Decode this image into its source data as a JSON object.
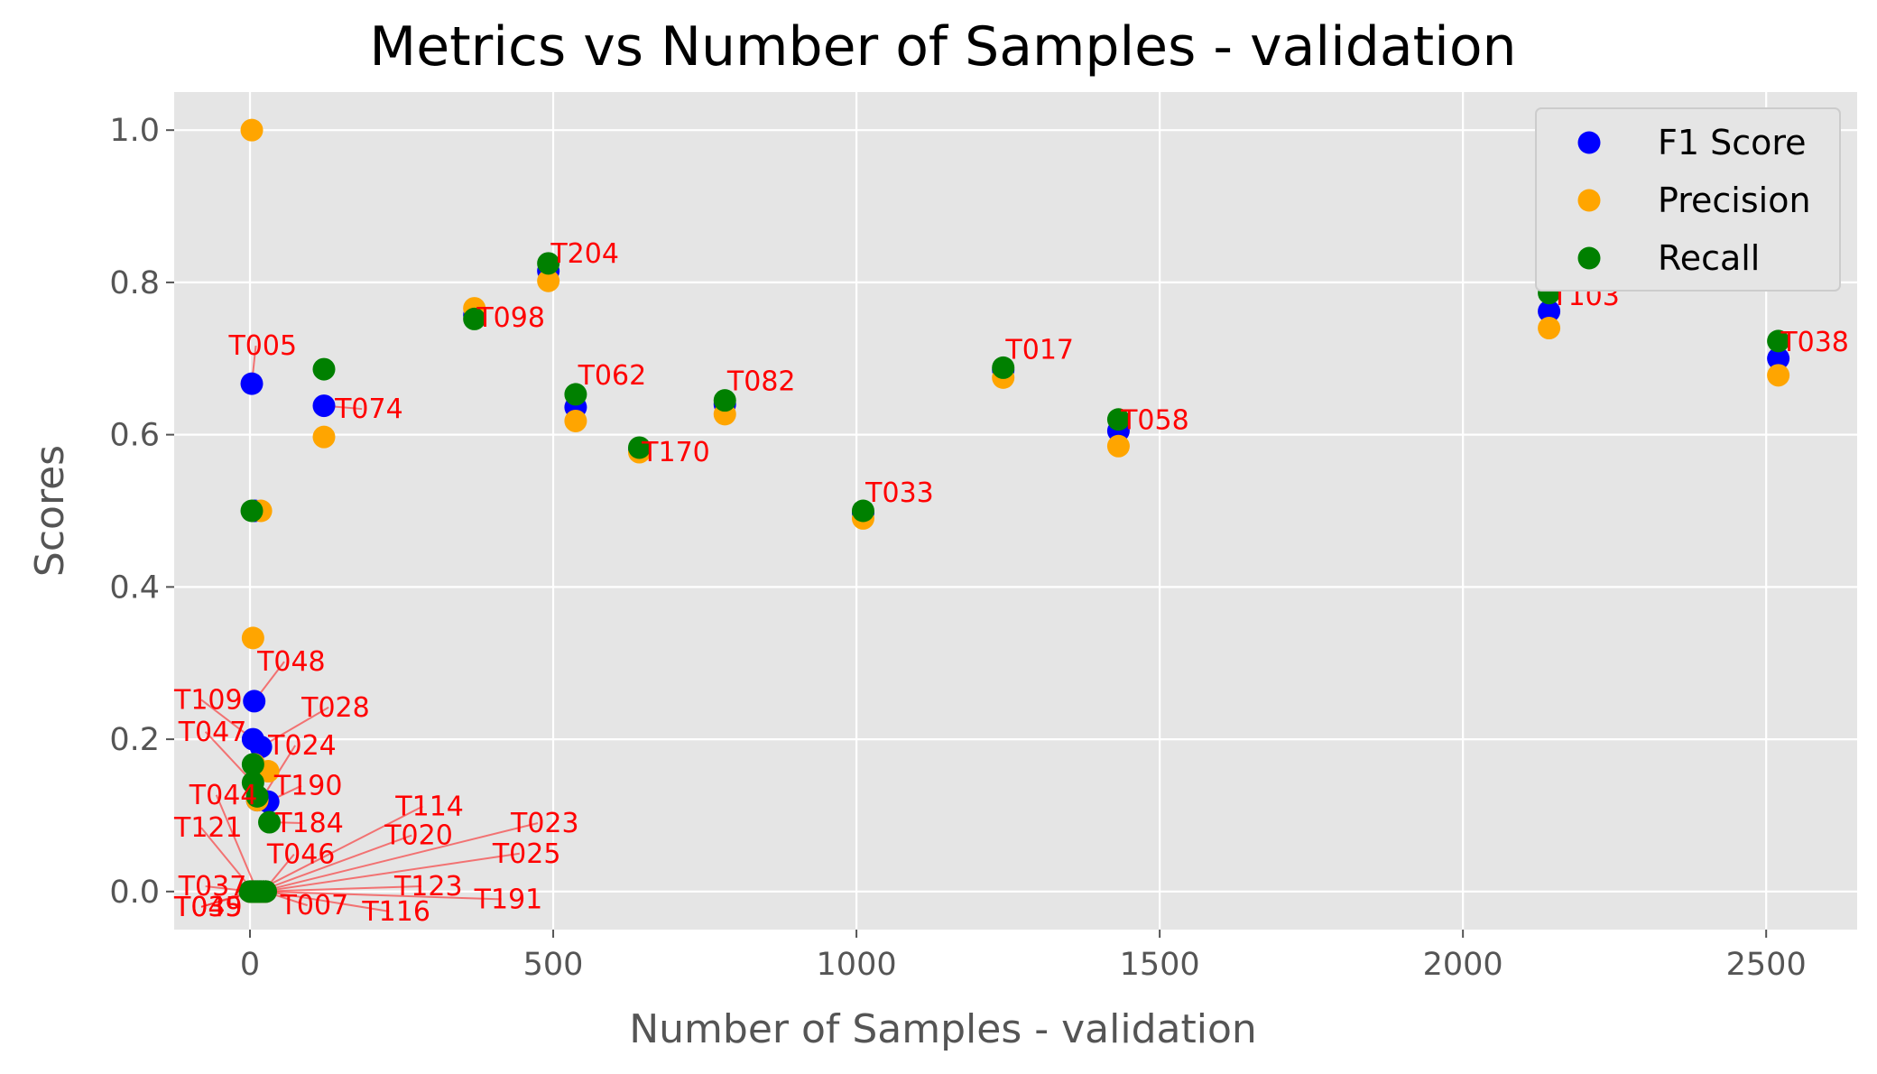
{
  "chart_data": {
    "type": "scatter",
    "title": "Metrics vs Number of Samples - validation",
    "xlabel": "Number of Samples - validation",
    "ylabel": "Scores",
    "xlim": [
      -125,
      2650
    ],
    "ylim": [
      -0.05,
      1.05
    ],
    "x_ticks": [
      0,
      500,
      1000,
      1500,
      2000,
      2500
    ],
    "x_tick_labels": [
      "0",
      "500",
      "1000",
      "1500",
      "2000",
      "2500"
    ],
    "y_ticks": [
      0.0,
      0.2,
      0.4,
      0.6,
      0.8,
      1.0
    ],
    "y_tick_labels": [
      "0.0",
      "0.2",
      "0.4",
      "0.6",
      "0.8",
      "1.0"
    ],
    "grid": true,
    "legend_position": "top-right",
    "series": [
      {
        "name": "F1 Score",
        "color": "#0000ff",
        "points": [
          [
            3,
            0.667
          ],
          [
            122,
            0.638
          ],
          [
            492,
            0.815
          ],
          [
            370,
            0.757
          ],
          [
            537,
            0.636
          ],
          [
            642,
            0.58
          ],
          [
            783,
            0.64
          ],
          [
            1011,
            0.497
          ],
          [
            1242,
            0.685
          ],
          [
            1432,
            0.605
          ],
          [
            2142,
            0.762
          ],
          [
            2520,
            0.7
          ],
          [
            7,
            0.25
          ],
          [
            5,
            0.2
          ],
          [
            18,
            0.19
          ],
          [
            30,
            0.118
          ],
          [
            12,
            0.12
          ],
          [
            8,
            0.5
          ],
          [
            0,
            0.0
          ],
          [
            3,
            0.0
          ],
          [
            6,
            0.0
          ],
          [
            9,
            0.0
          ],
          [
            12,
            0.0
          ],
          [
            15,
            0.0
          ],
          [
            18,
            0.0
          ],
          [
            22,
            0.0
          ],
          [
            26,
            0.0
          ]
        ]
      },
      {
        "name": "Precision",
        "color": "#ffa500",
        "points": [
          [
            3,
            1.0
          ],
          [
            122,
            0.597
          ],
          [
            492,
            0.802
          ],
          [
            370,
            0.766
          ],
          [
            537,
            0.618
          ],
          [
            642,
            0.577
          ],
          [
            783,
            0.627
          ],
          [
            1011,
            0.49
          ],
          [
            1242,
            0.675
          ],
          [
            1432,
            0.585
          ],
          [
            2142,
            0.74
          ],
          [
            2520,
            0.678
          ],
          [
            5,
            0.333
          ],
          [
            30,
            0.158
          ],
          [
            18,
            0.5
          ],
          [
            7,
            0.167
          ],
          [
            12,
            0.12
          ],
          [
            0,
            0.0
          ],
          [
            3,
            0.0
          ],
          [
            6,
            0.0
          ],
          [
            9,
            0.0
          ],
          [
            12,
            0.0
          ],
          [
            15,
            0.0
          ],
          [
            18,
            0.0
          ],
          [
            22,
            0.0
          ],
          [
            26,
            0.0
          ]
        ]
      },
      {
        "name": "Recall",
        "color": "#008000",
        "points": [
          [
            122,
            0.686
          ],
          [
            492,
            0.825
          ],
          [
            370,
            0.752
          ],
          [
            537,
            0.653
          ],
          [
            642,
            0.583
          ],
          [
            783,
            0.645
          ],
          [
            1011,
            0.5
          ],
          [
            1242,
            0.688
          ],
          [
            1432,
            0.62
          ],
          [
            2142,
            0.786
          ],
          [
            2520,
            0.723
          ],
          [
            3,
            0.5
          ],
          [
            5,
            0.167
          ],
          [
            5,
            0.143
          ],
          [
            12,
            0.125
          ],
          [
            32,
            0.091
          ],
          [
            0,
            0.0
          ],
          [
            3,
            0.0
          ],
          [
            6,
            0.0
          ],
          [
            9,
            0.0
          ],
          [
            12,
            0.0
          ],
          [
            15,
            0.0
          ],
          [
            18,
            0.0
          ],
          [
            22,
            0.0
          ],
          [
            26,
            0.0
          ]
        ]
      }
    ],
    "annotations": [
      {
        "text": "T005",
        "point": [
          3,
          0.667
        ],
        "text_at": [
          -35,
          0.705
        ]
      },
      {
        "text": "T074",
        "point": [
          122,
          0.638
        ],
        "text_at": [
          140,
          0.622
        ],
        "arrow": true
      },
      {
        "text": "T204",
        "point": [
          492,
          0.815
        ],
        "text_at": [
          496,
          0.826
        ],
        "arrow": false
      },
      {
        "text": "T098",
        "point": [
          370,
          0.757
        ],
        "text_at": [
          374,
          0.742
        ],
        "arrow": false
      },
      {
        "text": "T062",
        "point": [
          537,
          0.653
        ],
        "text_at": [
          541,
          0.666
        ],
        "arrow": false
      },
      {
        "text": "T170",
        "point": [
          642,
          0.58
        ],
        "text_at": [
          646,
          0.565
        ],
        "arrow": false
      },
      {
        "text": "T082",
        "point": [
          783,
          0.645
        ],
        "text_at": [
          787,
          0.658
        ],
        "arrow": false
      },
      {
        "text": "T033",
        "point": [
          1011,
          0.5
        ],
        "text_at": [
          1015,
          0.512
        ],
        "arrow": false
      },
      {
        "text": "T017",
        "point": [
          1242,
          0.688
        ],
        "text_at": [
          1246,
          0.7
        ],
        "arrow": false
      },
      {
        "text": "T058",
        "point": [
          1432,
          0.62
        ],
        "text_at": [
          1436,
          0.607
        ],
        "arrow": false
      },
      {
        "text": "T103",
        "point": [
          2142,
          0.786
        ],
        "text_at": [
          2146,
          0.77
        ],
        "arrow": false
      },
      {
        "text": "T038",
        "point": [
          2520,
          0.723
        ],
        "text_at": [
          2524,
          0.71
        ],
        "arrow": false
      },
      {
        "text": "T048",
        "point": [
          7,
          0.25
        ],
        "text_at": [
          12,
          0.29
        ]
      },
      {
        "text": "T109",
        "point": [
          5,
          0.2
        ],
        "text_at": [
          -125,
          0.24
        ]
      },
      {
        "text": "T028",
        "point": [
          18,
          0.19
        ],
        "text_at": [
          85,
          0.23
        ]
      },
      {
        "text": "T047",
        "point": [
          5,
          0.143
        ],
        "text_at": [
          -118,
          0.198
        ]
      },
      {
        "text": "T024",
        "point": [
          18,
          0.12
        ],
        "text_at": [
          30,
          0.18
        ]
      },
      {
        "text": "T044",
        "point": [
          12,
          0.0
        ],
        "text_at": [
          -100,
          0.115
        ]
      },
      {
        "text": "T190",
        "point": [
          30,
          0.118
        ],
        "text_at": [
          40,
          0.127
        ]
      },
      {
        "text": "T114",
        "point": [
          10,
          0.0
        ],
        "text_at": [
          240,
          0.1
        ]
      },
      {
        "text": "T121",
        "point": [
          6,
          0.0
        ],
        "text_at": [
          -125,
          0.072
        ]
      },
      {
        "text": "T184",
        "point": [
          32,
          0.091
        ],
        "text_at": [
          42,
          0.078
        ]
      },
      {
        "text": "T023",
        "point": [
          18,
          0.0
        ],
        "text_at": [
          430,
          0.078
        ]
      },
      {
        "text": "T020",
        "point": [
          14,
          0.0
        ],
        "text_at": [
          222,
          0.062
        ]
      },
      {
        "text": "T046",
        "point": [
          22,
          0.0
        ],
        "text_at": [
          28,
          0.037
        ]
      },
      {
        "text": "T025",
        "point": [
          20,
          0.0
        ],
        "text_at": [
          400,
          0.038
        ]
      },
      {
        "text": "T037",
        "point": [
          3,
          0.0
        ],
        "text_at": [
          -118,
          -0.005
        ]
      },
      {
        "text": "T123",
        "point": [
          16,
          0.0
        ],
        "text_at": [
          238,
          -0.005
        ]
      },
      {
        "text": "T191",
        "point": [
          26,
          0.0
        ],
        "text_at": [
          370,
          -0.022
        ]
      },
      {
        "text": "T035",
        "point": [
          0,
          0.0
        ],
        "text_at": [
          -125,
          -0.032
        ]
      },
      {
        "text": "T049",
        "point": [
          9,
          0.0
        ],
        "text_at": [
          -125,
          -0.032
        ]
      },
      {
        "text": "T007",
        "point": [
          24,
          0.0
        ],
        "text_at": [
          50,
          -0.03
        ]
      },
      {
        "text": "T116",
        "point": [
          28,
          0.0
        ],
        "text_at": [
          185,
          -0.038
        ]
      }
    ]
  }
}
